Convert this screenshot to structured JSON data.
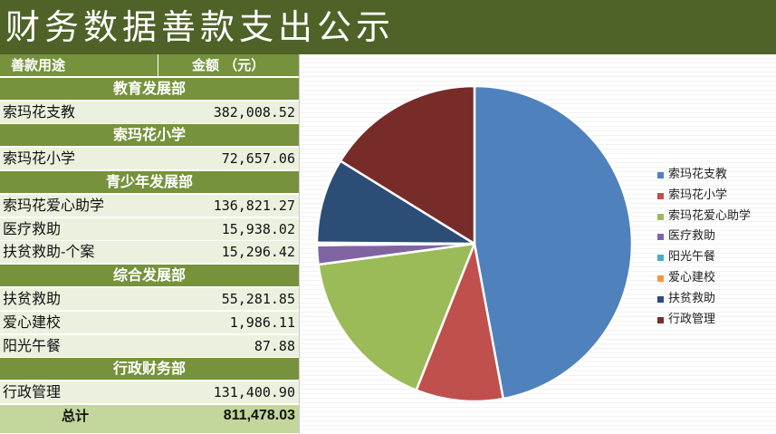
{
  "title": "财务数据善款支出公示",
  "table": {
    "header": {
      "col1": "善款用途",
      "col2": "金额 （元）"
    },
    "sections": [
      {
        "name": "教育发展部",
        "items": [
          {
            "name": "索玛花支教",
            "amount": "382,008.52"
          }
        ]
      },
      {
        "name": "索玛花小学",
        "items": [
          {
            "name": "索玛花小学",
            "amount": "72,657.06"
          }
        ]
      },
      {
        "name": "青少年发展部",
        "items": [
          {
            "name": "索玛花爱心助学",
            "amount": "136,821.27"
          },
          {
            "name": "医疗救助",
            "amount": "15,938.02"
          },
          {
            "name": "扶贫救助-个案",
            "amount": "15,296.42"
          }
        ]
      },
      {
        "name": "综合发展部",
        "items": [
          {
            "name": "扶贫救助",
            "amount": "55,281.85"
          },
          {
            "name": "爱心建校",
            "amount": "1,986.11"
          },
          {
            "name": "阳光午餐",
            "amount": "87.88"
          }
        ]
      },
      {
        "name": "行政财务部",
        "items": [
          {
            "name": "行政管理",
            "amount": "131,400.90"
          }
        ]
      }
    ],
    "total": {
      "label": "总计",
      "amount": "811,478.03"
    }
  },
  "chart_data": {
    "type": "pie",
    "start": "12 o'clock",
    "direction": "clockwise",
    "legend_position": "right",
    "slices": [
      {
        "label": "索玛花支教",
        "value": 382008.52,
        "color": "#4f81bd"
      },
      {
        "label": "索玛花小学",
        "value": 72657.06,
        "color": "#c0504d"
      },
      {
        "label": "索玛花爱心助学",
        "value": 136821.27,
        "color": "#9bbb59"
      },
      {
        "label": "医疗救助",
        "value": 15938.02,
        "color": "#8064a2"
      },
      {
        "label": "阳光午餐",
        "value": 87.88,
        "color": "#4bacc6"
      },
      {
        "label": "爱心建校",
        "value": 1986.11,
        "color": "#f79646"
      },
      {
        "label": "扶贫救助",
        "value": 70578.27,
        "color": "#2c4d75"
      },
      {
        "label": "行政管理",
        "value": 131400.9,
        "color": "#772c2a"
      }
    ]
  }
}
